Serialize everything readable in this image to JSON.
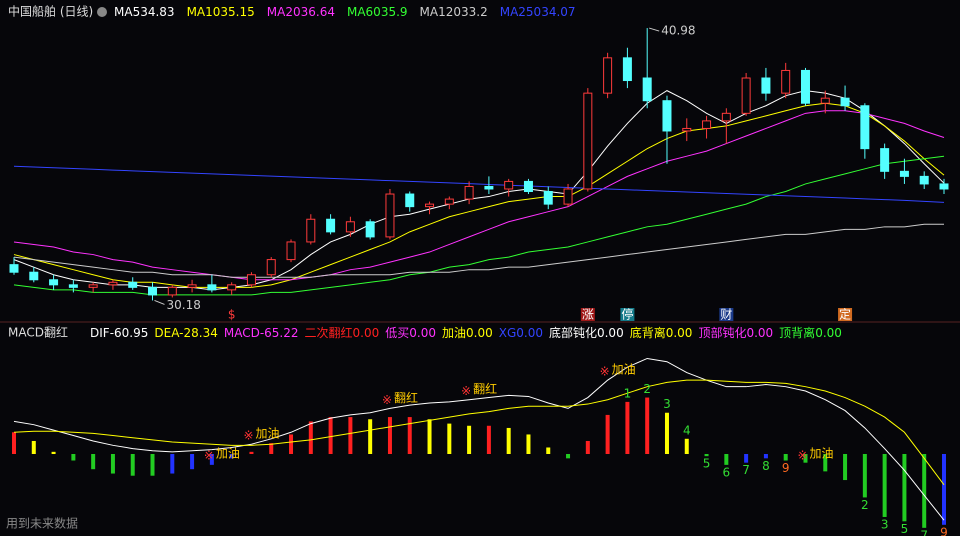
{
  "chart_data": [
    {
      "type": "candlestick",
      "title": "中国船舶 (日线)",
      "open": [
        31.6,
        31.3,
        31.0,
        30.8,
        30.7,
        30.8,
        30.9,
        30.7,
        30.4,
        30.7,
        30.8,
        30.6,
        30.8,
        31.2,
        31.8,
        32.5,
        33.4,
        32.9,
        33.3,
        32.7,
        34.4,
        33.9,
        34.0,
        34.2,
        34.7,
        34.6,
        34.9,
        34.5,
        34.0,
        34.6,
        38.4,
        39.8,
        39.0,
        38.1,
        36.9,
        37.0,
        37.3,
        37.6,
        39.0,
        38.4,
        39.3,
        38.0,
        38.2,
        37.9,
        36.2,
        35.3,
        35.1,
        34.8
      ],
      "high": [
        31.9,
        31.5,
        31.2,
        31.0,
        30.9,
        31.0,
        31.1,
        30.9,
        30.8,
        31.0,
        31.2,
        30.9,
        31.3,
        31.9,
        32.6,
        33.6,
        33.6,
        33.5,
        33.4,
        34.6,
        34.5,
        34.1,
        34.3,
        34.9,
        35.1,
        35.0,
        35.0,
        34.7,
        34.8,
        38.6,
        40.0,
        40.2,
        40.98,
        38.3,
        37.4,
        37.5,
        37.8,
        39.2,
        39.4,
        39.6,
        39.4,
        38.5,
        38.7,
        38.0,
        36.4,
        35.8,
        35.3,
        35.0
      ],
      "low": [
        31.2,
        30.9,
        30.6,
        30.5,
        30.5,
        30.6,
        30.6,
        30.18,
        30.3,
        30.5,
        30.5,
        30.4,
        30.7,
        31.1,
        31.7,
        32.4,
        32.8,
        32.7,
        32.6,
        32.6,
        33.7,
        33.6,
        33.8,
        34.0,
        34.4,
        34.3,
        34.4,
        33.8,
        33.9,
        34.5,
        38.2,
        38.6,
        37.8,
        35.6,
        36.5,
        36.6,
        36.4,
        37.5,
        38.1,
        38.2,
        37.9,
        37.6,
        37.7,
        35.8,
        35.0,
        34.8,
        34.6,
        34.4
      ],
      "close": [
        31.3,
        31.0,
        30.8,
        30.7,
        30.8,
        30.9,
        30.7,
        30.4,
        30.7,
        30.8,
        30.6,
        30.8,
        31.2,
        31.8,
        32.5,
        33.4,
        32.9,
        33.3,
        32.7,
        34.4,
        33.9,
        34.0,
        34.2,
        34.7,
        34.6,
        34.9,
        34.5,
        34.0,
        34.6,
        38.4,
        39.8,
        38.9,
        38.1,
        36.9,
        37.0,
        37.3,
        37.6,
        39.0,
        38.4,
        39.3,
        38.0,
        38.2,
        37.9,
        36.2,
        35.3,
        35.1,
        34.8,
        34.6
      ],
      "up_color": "#ff3b3b",
      "down_color": "#54ffff",
      "ylim": [
        30.0,
        41.3
      ],
      "series": [
        {
          "name": "MA5",
          "color": "#ffffff",
          "values": [
            31.8,
            31.5,
            31.2,
            31.0,
            30.9,
            30.8,
            30.8,
            30.7,
            30.7,
            30.7,
            30.6,
            30.7,
            30.8,
            31.0,
            31.4,
            32.0,
            32.5,
            32.8,
            33.2,
            33.5,
            33.6,
            33.8,
            34.0,
            34.2,
            34.3,
            34.5,
            34.6,
            34.5,
            34.4,
            35.3,
            36.3,
            37.2,
            38.0,
            38.5,
            38.1,
            37.6,
            37.2,
            37.6,
            37.9,
            38.3,
            38.5,
            38.4,
            38.2,
            37.7,
            37.1,
            36.4,
            35.6,
            34.83
          ]
        },
        {
          "name": "MA10",
          "color": "#ffff00",
          "values": [
            32.0,
            31.8,
            31.6,
            31.4,
            31.2,
            31.0,
            30.9,
            30.9,
            30.8,
            30.7,
            30.7,
            30.7,
            30.7,
            30.8,
            31.0,
            31.3,
            31.6,
            31.9,
            32.2,
            32.5,
            32.9,
            33.2,
            33.5,
            33.7,
            33.9,
            34.1,
            34.2,
            34.3,
            34.3,
            34.7,
            35.2,
            35.7,
            36.2,
            36.6,
            36.9,
            37.0,
            37.1,
            37.3,
            37.5,
            37.7,
            37.9,
            38.0,
            37.9,
            37.6,
            37.1,
            36.5,
            35.8,
            35.15
          ]
        },
        {
          "name": "MA20",
          "color": "#ff33ff",
          "values": [
            32.5,
            32.4,
            32.3,
            32.1,
            32.0,
            31.8,
            31.7,
            31.5,
            31.4,
            31.3,
            31.2,
            31.1,
            31.0,
            31.0,
            31.0,
            31.1,
            31.2,
            31.4,
            31.5,
            31.7,
            31.9,
            32.1,
            32.4,
            32.7,
            33.0,
            33.3,
            33.5,
            33.7,
            33.9,
            34.3,
            34.7,
            35.1,
            35.4,
            35.7,
            35.9,
            36.1,
            36.4,
            36.7,
            37.0,
            37.3,
            37.6,
            37.7,
            37.7,
            37.6,
            37.4,
            37.2,
            36.9,
            36.64
          ]
        },
        {
          "name": "MA60",
          "color": "#33ff33",
          "values": [
            30.8,
            30.7,
            30.6,
            30.6,
            30.5,
            30.5,
            30.5,
            30.4,
            30.4,
            30.4,
            30.4,
            30.4,
            30.4,
            30.5,
            30.5,
            30.6,
            30.7,
            30.8,
            30.9,
            31.0,
            31.2,
            31.3,
            31.5,
            31.6,
            31.8,
            31.9,
            32.1,
            32.2,
            32.3,
            32.5,
            32.7,
            32.9,
            33.1,
            33.2,
            33.4,
            33.6,
            33.8,
            34.0,
            34.3,
            34.5,
            34.8,
            35.0,
            35.2,
            35.4,
            35.6,
            35.7,
            35.8,
            35.9
          ]
        },
        {
          "name": "MA120",
          "color": "#cccccc",
          "values": [
            31.9,
            31.8,
            31.7,
            31.6,
            31.5,
            31.4,
            31.3,
            31.3,
            31.2,
            31.2,
            31.2,
            31.1,
            31.1,
            31.1,
            31.1,
            31.1,
            31.2,
            31.2,
            31.2,
            31.2,
            31.3,
            31.3,
            31.3,
            31.4,
            31.4,
            31.5,
            31.5,
            31.6,
            31.7,
            31.8,
            31.9,
            32.0,
            32.1,
            32.2,
            32.3,
            32.4,
            32.5,
            32.6,
            32.7,
            32.8,
            32.8,
            32.9,
            33.0,
            33.0,
            33.1,
            33.1,
            33.2,
            33.2
          ]
        },
        {
          "name": "MA250",
          "color": "#3344ff",
          "values": [
            35.5,
            35.47,
            35.44,
            35.41,
            35.38,
            35.35,
            35.32,
            35.29,
            35.26,
            35.23,
            35.2,
            35.17,
            35.14,
            35.11,
            35.08,
            35.05,
            35.02,
            34.99,
            34.96,
            34.93,
            34.9,
            34.87,
            34.84,
            34.81,
            34.78,
            34.75,
            34.72,
            34.69,
            34.66,
            34.63,
            34.6,
            34.57,
            34.54,
            34.51,
            34.48,
            34.45,
            34.42,
            34.39,
            34.36,
            34.33,
            34.3,
            34.27,
            34.24,
            34.21,
            34.18,
            34.15,
            34.11,
            34.07
          ]
        }
      ],
      "events": [
        {
          "label": "$",
          "index": 11,
          "color": "#ff3b3b",
          "box": null
        },
        {
          "label": "涨",
          "index": 29,
          "color": "#ffffff",
          "box": "#a01818"
        },
        {
          "label": "停",
          "index": 31,
          "color": "#ffffff",
          "box": "#127a8a"
        },
        {
          "label": "财",
          "index": 36,
          "color": "#ffffff",
          "box": "#1a3a8a"
        },
        {
          "label": "定",
          "index": 42,
          "color": "#ffffff",
          "box": "#d06a20"
        }
      ]
    },
    {
      "type": "macd",
      "title": "MACD翻红",
      "ylim": [
        -70,
        105
      ],
      "indicators": [
        {
          "name": "DIF",
          "value": -60.95,
          "color": "#ffffff"
        },
        {
          "name": "DEA",
          "value": -28.34,
          "color": "#ffff00"
        },
        {
          "name": "MACD",
          "value": -65.22,
          "color": "#ff33ff"
        },
        {
          "name": "二次翻红",
          "value": 0,
          "label": "0.00",
          "color": "#ff2020"
        },
        {
          "name": "低买",
          "value": 0,
          "label": "0.00",
          "color": "#ff33ff"
        },
        {
          "name": "加油",
          "value": 0,
          "label": "0.00",
          "color": "#ffff00"
        },
        {
          "name": "XG",
          "value": 0,
          "label": "0.00",
          "color": "#3344ff"
        },
        {
          "name": "底部钝化",
          "value": 0,
          "label": "0.00",
          "color": "#ffffff"
        },
        {
          "name": "底背离",
          "value": 0,
          "label": "0.00",
          "color": "#ffff00"
        },
        {
          "name": "顶部钝化",
          "value": 0,
          "label": "0.00",
          "color": "#ff33ff"
        },
        {
          "name": "顶背离",
          "value": 0,
          "label": "0.00",
          "color": "#33ff33"
        }
      ],
      "series": [
        {
          "name": "DIF",
          "color": "#ffffff",
          "values": [
            30,
            27,
            22,
            17,
            12,
            8,
            5,
            3,
            2,
            3,
            4,
            6,
            9,
            14,
            20,
            28,
            33,
            36,
            38,
            42,
            45,
            47,
            48,
            50,
            52,
            54,
            53,
            47,
            42,
            52,
            68,
            80,
            88,
            85,
            75,
            68,
            62,
            62,
            64,
            62,
            58,
            50,
            40,
            24,
            5,
            -15,
            -38,
            -60.95
          ]
        },
        {
          "name": "DEA",
          "color": "#ffff00",
          "values": [
            20,
            21,
            21,
            20,
            19,
            17,
            15,
            13,
            11,
            10,
            9,
            8,
            8,
            9,
            11,
            13,
            16,
            19,
            22,
            25,
            28,
            31,
            34,
            37,
            39,
            42,
            44,
            44,
            44,
            46,
            50,
            56,
            62,
            66,
            68,
            68,
            67,
            66,
            66,
            65,
            62,
            58,
            52,
            44,
            34,
            20,
            -4,
            -28.34
          ]
        }
      ],
      "bars": [
        20,
        12,
        2,
        -6,
        -14,
        -18,
        -20,
        -20,
        -18,
        -14,
        -10,
        -4,
        2,
        10,
        18,
        30,
        34,
        34,
        32,
        34,
        34,
        32,
        28,
        26,
        26,
        24,
        18,
        6,
        -4,
        12,
        36,
        48,
        52,
        38,
        14,
        -2,
        -10,
        -8,
        -4,
        -6,
        -8,
        -16,
        -24,
        -40,
        -58,
        -62,
        -68,
        -65.22
      ],
      "bar_colors": {
        "rise_pos": "#ff2020",
        "fall_pos": "#ffff00",
        "fall_neg": "#22cc22",
        "rise_neg": "#2233ff"
      },
      "signals": [
        {
          "label": "加油",
          "index": 10
        },
        {
          "label": "加油",
          "index": 12
        },
        {
          "label": "翻红",
          "index": 19
        },
        {
          "label": "翻红",
          "index": 23
        },
        {
          "label": "加油",
          "index": 30
        },
        {
          "label": "加油",
          "index": 40
        }
      ],
      "counts": [
        {
          "value": 1,
          "index": 31
        },
        {
          "value": 2,
          "index": 32
        },
        {
          "value": 3,
          "index": 33
        },
        {
          "value": 4,
          "index": 34
        },
        {
          "value": 5,
          "index": 35
        },
        {
          "value": 6,
          "index": 36
        },
        {
          "value": 7,
          "index": 37
        },
        {
          "value": 8,
          "index": 38
        },
        {
          "value": 9,
          "index": 39
        },
        {
          "value": 2,
          "index": 43
        },
        {
          "value": 3,
          "index": 44
        },
        {
          "value": 5,
          "index": 45
        },
        {
          "value": 7,
          "index": 46
        },
        {
          "value": 9,
          "index": 47
        }
      ]
    }
  ],
  "footer": "用到未来数据"
}
